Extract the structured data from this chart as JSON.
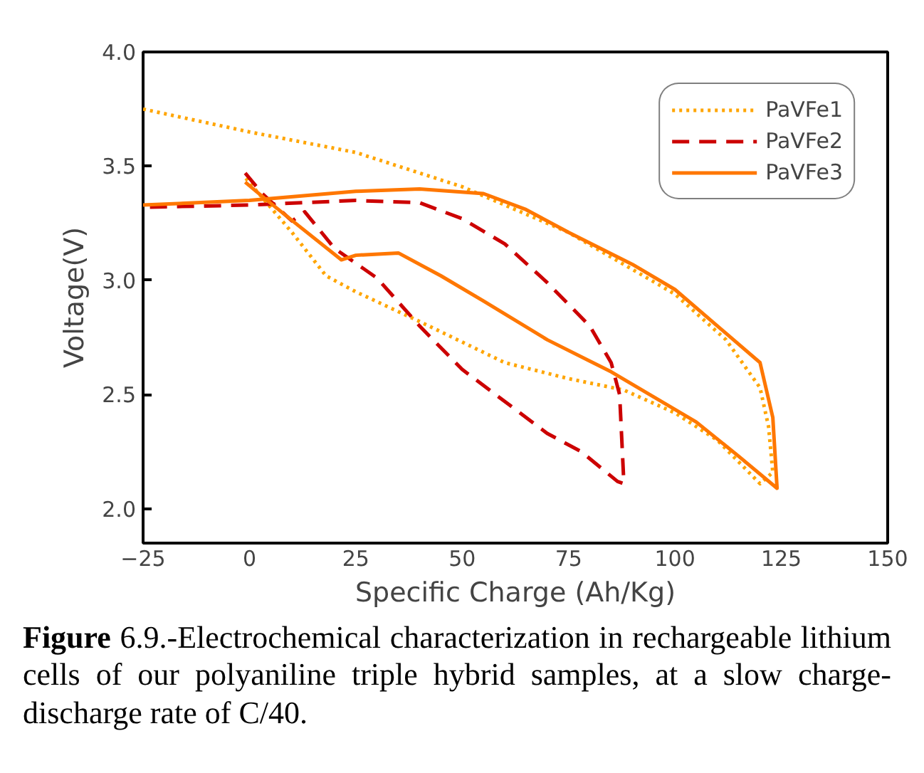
{
  "chart_data": {
    "type": "line",
    "xlabel": "Specific Charge (Ah/Kg)",
    "ylabel": "Voltage(V)",
    "xlim": [
      -25,
      150
    ],
    "ylim": [
      1.85,
      4.0
    ],
    "xticks": [
      -25,
      0,
      25,
      50,
      75,
      100,
      125,
      150
    ],
    "yticks": [
      {
        "value": 2.0,
        "label": "2.0"
      },
      {
        "value": 2.5,
        "label": "2.5"
      },
      {
        "value": 3.0,
        "label": "3.0"
      },
      {
        "value": 3.5,
        "label": "3.5"
      },
      {
        "value": 4.0,
        "label": "4.0"
      }
    ],
    "grid": false,
    "legend": "top right",
    "series": [
      {
        "name": "PaVFe1",
        "color": "#ffa500",
        "line_style": "dotted",
        "x": [
          -25,
          0,
          25,
          50,
          75,
          100,
          112,
          120,
          122,
          123,
          120,
          110,
          100,
          88,
          75,
          60,
          50,
          40,
          25,
          18,
          10,
          -1
        ],
        "values": [
          3.75,
          3.65,
          3.56,
          3.41,
          3.21,
          2.94,
          2.74,
          2.53,
          2.36,
          2.16,
          2.11,
          2.3,
          2.42,
          2.52,
          2.57,
          2.64,
          2.73,
          2.82,
          2.95,
          3.02,
          3.21,
          3.45
        ]
      },
      {
        "name": "PaVFe2",
        "color": "#cc0000",
        "line_style": "dashed",
        "x": [
          -1,
          3,
          10,
          13,
          20,
          30,
          40,
          50,
          60,
          70,
          78,
          86.5,
          88,
          87,
          85,
          80,
          70,
          60,
          50,
          40,
          25,
          0,
          -25
        ],
        "values": [
          3.47,
          3.38,
          3.26,
          3.3,
          3.14,
          3.01,
          2.8,
          2.61,
          2.47,
          2.33,
          2.25,
          2.12,
          2.11,
          2.5,
          2.64,
          2.8,
          2.99,
          3.16,
          3.27,
          3.34,
          3.35,
          3.33,
          3.32
        ]
      },
      {
        "name": "PaVFe3",
        "color": "#ff7700",
        "line_style": "solid",
        "x": [
          -25,
          0,
          25,
          40,
          55,
          65,
          75,
          90,
          100,
          110,
          120,
          123,
          124,
          115,
          105,
          95,
          85,
          70,
          55,
          45,
          35,
          25,
          21.6,
          11.5,
          3.5,
          -1
        ],
        "values": [
          3.33,
          3.35,
          3.39,
          3.4,
          3.38,
          3.31,
          3.21,
          3.07,
          2.96,
          2.8,
          2.64,
          2.4,
          2.09,
          2.23,
          2.38,
          2.49,
          2.6,
          2.74,
          2.91,
          3.02,
          3.12,
          3.11,
          3.09,
          3.24,
          3.36,
          3.43
        ]
      }
    ],
    "annotations": [
      "Figure 6.9.-Electrochemical characterization in rechargeable lithium cells of our polyaniline triple hybrid samples, at a slow charge-discharge rate of C/40."
    ]
  }
}
